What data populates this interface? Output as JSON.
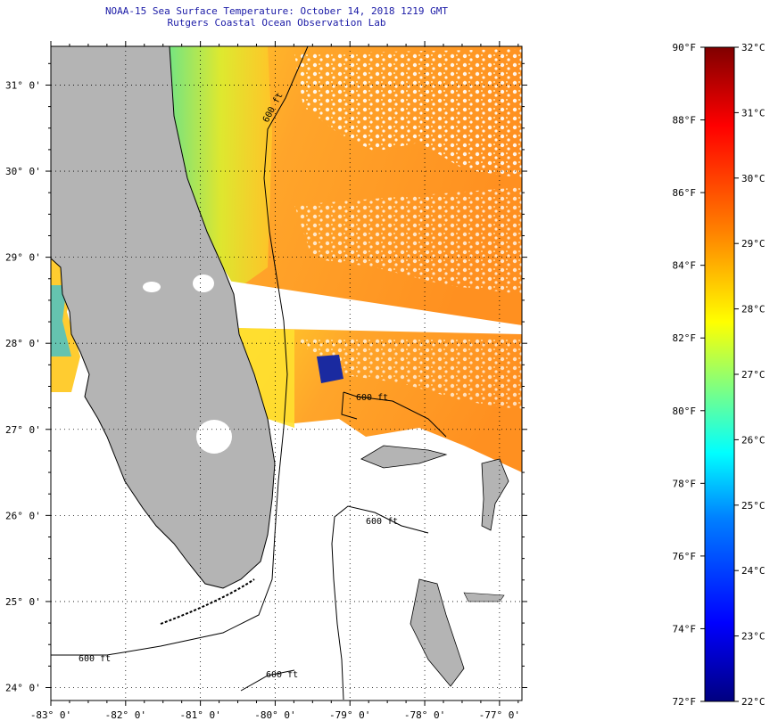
{
  "header": {
    "title": "NOAA-15 Sea Surface Temperature:  October 14, 2018 1219 GMT",
    "subtitle": "Rutgers Coastal Ocean Observation Lab"
  },
  "map": {
    "lon_range": [
      -83,
      -76.7
    ],
    "lat_range": [
      23.85,
      31.45
    ],
    "lat_ticks": [
      {
        "value": 31,
        "label": "31° 0'"
      },
      {
        "value": 30,
        "label": "30° 0'"
      },
      {
        "value": 29,
        "label": "29° 0'"
      },
      {
        "value": 28,
        "label": "28° 0'"
      },
      {
        "value": 27,
        "label": "27° 0'"
      },
      {
        "value": 26,
        "label": "26° 0'"
      },
      {
        "value": 25,
        "label": "25° 0'"
      },
      {
        "value": 24,
        "label": "24° 0'"
      }
    ],
    "lon_ticks": [
      {
        "value": -83,
        "label": "-83° 0'"
      },
      {
        "value": -82,
        "label": "-82° 0'"
      },
      {
        "value": -81,
        "label": "-81° 0'"
      },
      {
        "value": -80,
        "label": "-80° 0'"
      },
      {
        "value": -79,
        "label": "-79° 0'"
      },
      {
        "value": -78,
        "label": "-78° 0'"
      },
      {
        "value": -77,
        "label": "-77° 0'"
      }
    ],
    "contour_labels": [
      "600 ft",
      "600 ft",
      "600 ft",
      "600 ft",
      "600 ft"
    ],
    "colors": {
      "land": "#b4b4b4",
      "warm_sst": "#ff9a1e",
      "coastal_sst": "#ffe02a",
      "cool_sst": "#3fd0a0",
      "cloud": "#ffffff"
    }
  },
  "colorbar": {
    "fahrenheit_labels": [
      "90°F",
      "88°F",
      "86°F",
      "84°F",
      "82°F",
      "80°F",
      "78°F",
      "76°F",
      "74°F",
      "72°F"
    ],
    "celsius_labels": [
      "32°C",
      "31°C",
      "30°C",
      "29°C",
      "28°C",
      "27°C",
      "26°C",
      "25°C",
      "24°C",
      "23°C",
      "22°C"
    ],
    "gradient_stops": [
      "#800000",
      "#ff0000",
      "#ff8000",
      "#ffff00",
      "#80ff80",
      "#00ffff",
      "#0080ff",
      "#0000ff",
      "#000080"
    ]
  }
}
